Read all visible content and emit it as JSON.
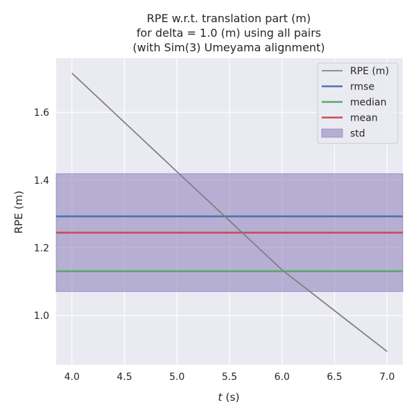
{
  "chart_data": {
    "type": "line",
    "title_lines": [
      "RPE w.r.t. translation part (m)",
      "for delta = 1.0 (m) using all pairs",
      "(with Sim(3) Umeyama alignment)"
    ],
    "xlabel_italic": "t",
    "xlabel_rest": " (s)",
    "ylabel": "RPE (m)",
    "xlim": [
      3.85,
      7.15
    ],
    "ylim": [
      0.855,
      1.76
    ],
    "x_ticks": [
      4.0,
      4.5,
      5.0,
      5.5,
      6.0,
      6.5,
      7.0
    ],
    "x_tick_labels": [
      "4.0",
      "4.5",
      "5.0",
      "5.5",
      "6.0",
      "6.5",
      "7.0"
    ],
    "y_ticks": [
      1.0,
      1.2,
      1.4,
      1.6
    ],
    "y_tick_labels": [
      "1.0",
      "1.2",
      "1.4",
      "1.6"
    ],
    "grid": true,
    "legend_position": "top-right",
    "series": [
      {
        "name": "RPE (m)",
        "color": "#808080",
        "x": [
          4.0,
          5.0,
          6.0,
          7.0
        ],
        "y": [
          1.716,
          1.425,
          1.135,
          0.894
        ]
      }
    ],
    "stats": {
      "rmse": 1.293,
      "median": 1.131,
      "mean": 1.245,
      "std": 0.174
    },
    "legend": [
      {
        "label": "RPE (m)",
        "color": "#808080",
        "kind": "line"
      },
      {
        "label": "rmse",
        "color": "#4c72b0",
        "kind": "line"
      },
      {
        "label": "median",
        "color": "#55a868",
        "kind": "line"
      },
      {
        "label": "mean",
        "color": "#c44e52",
        "kind": "line"
      },
      {
        "label": "std",
        "color": "#8172b3",
        "kind": "patch"
      }
    ],
    "colors": {
      "axes_bg": "#eaeaf2",
      "grid": "#ffffff",
      "rmse": "#4c72b0",
      "median": "#55a868",
      "mean": "#c44e52",
      "std_fill": "#8172b3"
    }
  }
}
